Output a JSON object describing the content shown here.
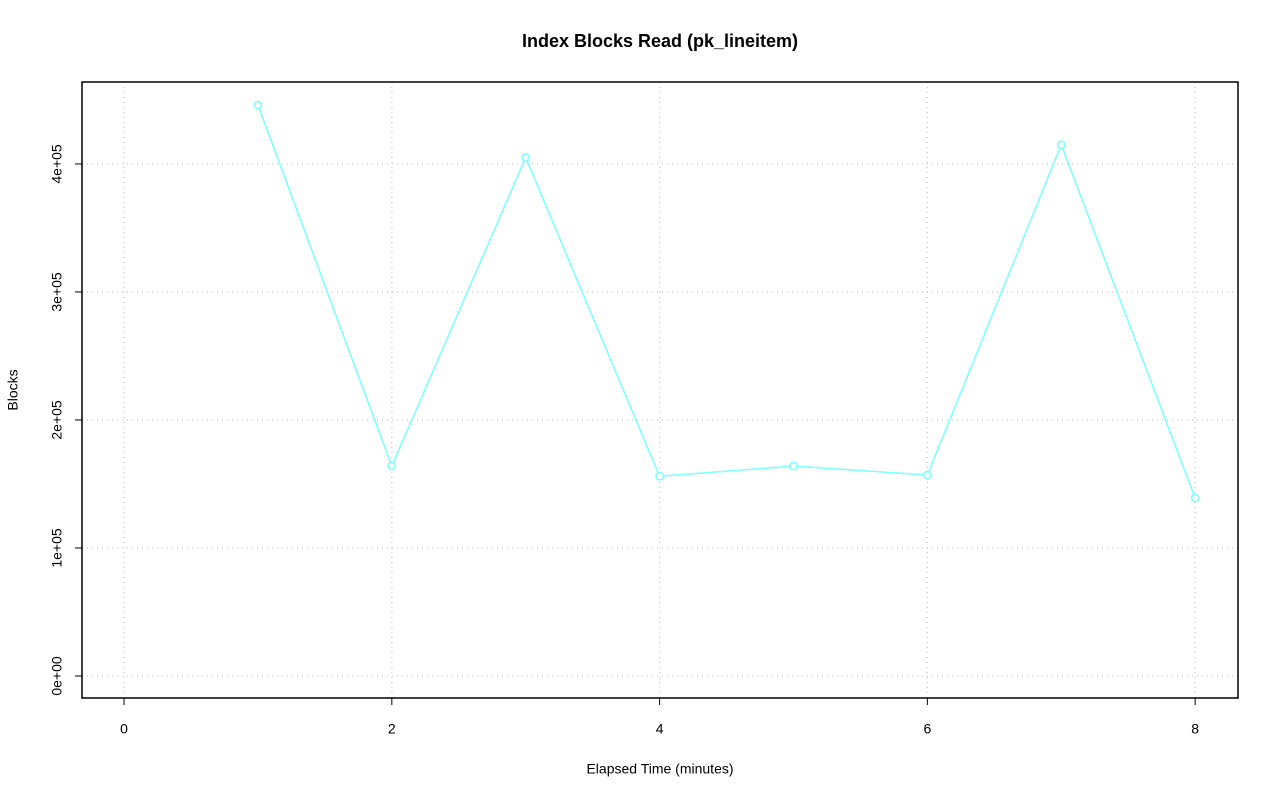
{
  "chart_data": {
    "type": "line",
    "title": "Index Blocks Read (pk_lineitem)",
    "x_label": "Elapsed Time (minutes)",
    "y_label": "Blocks",
    "x": [
      1,
      2,
      3,
      4,
      5,
      6,
      7,
      8
    ],
    "values": [
      446000,
      164000,
      405000,
      156000,
      164000,
      157000,
      415000,
      139000
    ],
    "color": "#7fffff",
    "xlim": [
      -0.314,
      8.32
    ],
    "xticks": [
      0,
      2,
      4,
      6,
      8
    ],
    "ylim": [
      -17200,
      464000
    ],
    "yticks": [
      {
        "value": 0,
        "label": "0e+00"
      },
      {
        "value": 100000,
        "label": "1e+05"
      },
      {
        "value": 200000,
        "label": "2e+05"
      },
      {
        "value": 300000,
        "label": "3e+05"
      },
      {
        "value": 400000,
        "label": "4e+05"
      }
    ],
    "grid": true
  }
}
